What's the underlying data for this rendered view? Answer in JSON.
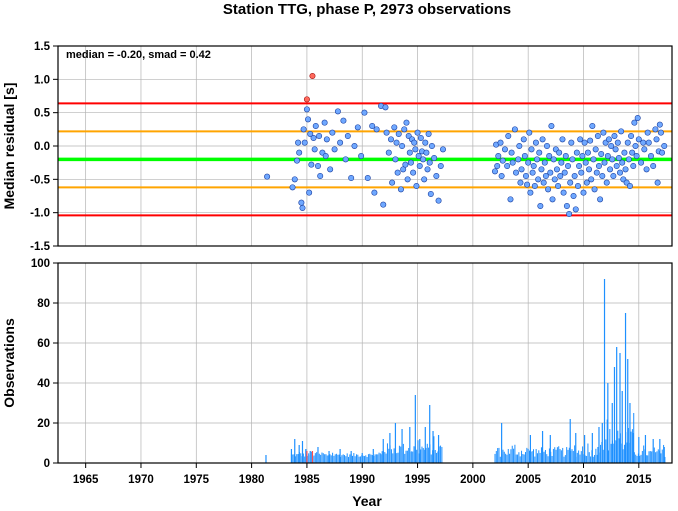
{
  "chart_data": [
    {
      "type": "scatter",
      "title": "Station TTG, phase P, 2973 observations",
      "ylabel": "Median residual [s]",
      "annotation": "median = -0.20, smad = 0.42",
      "xlim": [
        1962.5,
        2018.0
      ],
      "ylim": [
        -1.5,
        1.5
      ],
      "x_ticks": [
        1965,
        1970,
        1975,
        1980,
        1985,
        1990,
        1995,
        2000,
        2005,
        2010,
        2015
      ],
      "y_ticks": [
        "1.5",
        "1.0",
        "0.5",
        "0.0",
        "-0.5",
        "-1.0",
        "-1.5"
      ],
      "y_tick_values": [
        1.5,
        1.0,
        0.5,
        0.0,
        -0.5,
        -1.0,
        -1.5
      ],
      "grid": true,
      "reference_lines": [
        {
          "y": 0.64,
          "color": "#ff0000"
        },
        {
          "y": 0.22,
          "color": "#ffa500"
        },
        {
          "y": -0.2,
          "color": "#00ff00"
        },
        {
          "y": -0.62,
          "color": "#ffa500"
        },
        {
          "y": -1.04,
          "color": "#ff0000"
        }
      ],
      "outlier_points": [
        [
          1985.0,
          0.7
        ],
        [
          1985.5,
          1.05
        ]
      ],
      "points": [
        [
          1981.4,
          -0.46
        ],
        [
          1983.7,
          -0.62
        ],
        [
          1983.9,
          -0.5
        ],
        [
          1984.1,
          -0.22
        ],
        [
          1984.2,
          0.05
        ],
        [
          1984.3,
          -0.1
        ],
        [
          1984.5,
          -0.85
        ],
        [
          1984.6,
          -0.93
        ],
        [
          1984.7,
          0.25
        ],
        [
          1984.8,
          0.05
        ],
        [
          1985.0,
          0.55
        ],
        [
          1985.1,
          0.4
        ],
        [
          1985.2,
          -0.7
        ],
        [
          1985.3,
          0.18
        ],
        [
          1985.4,
          -0.28
        ],
        [
          1985.6,
          0.12
        ],
        [
          1985.7,
          -0.05
        ],
        [
          1985.8,
          0.3
        ],
        [
          1986.0,
          -0.3
        ],
        [
          1986.1,
          0.15
        ],
        [
          1986.2,
          -0.45
        ],
        [
          1986.4,
          -0.1
        ],
        [
          1986.6,
          0.35
        ],
        [
          1986.7,
          -0.15
        ],
        [
          1986.8,
          0.1
        ],
        [
          1987.1,
          -0.35
        ],
        [
          1987.3,
          0.2
        ],
        [
          1987.5,
          -0.05
        ],
        [
          1987.8,
          0.52
        ],
        [
          1988.0,
          0.05
        ],
        [
          1988.3,
          0.38
        ],
        [
          1988.5,
          -0.2
        ],
        [
          1988.7,
          0.15
        ],
        [
          1989.0,
          -0.48
        ],
        [
          1989.3,
          0.0
        ],
        [
          1989.6,
          0.28
        ],
        [
          1989.9,
          -0.15
        ],
        [
          1990.2,
          0.5
        ],
        [
          1990.5,
          -0.48
        ],
        [
          1990.9,
          0.3
        ],
        [
          1991.1,
          -0.7
        ],
        [
          1991.3,
          0.25
        ],
        [
          1991.7,
          0.6
        ],
        [
          1991.9,
          -0.88
        ],
        [
          1992.1,
          0.58
        ],
        [
          1992.2,
          0.2
        ],
        [
          1992.4,
          -0.1
        ],
        [
          1992.6,
          0.1
        ],
        [
          1992.7,
          -0.55
        ],
        [
          1992.9,
          0.28
        ],
        [
          1993.0,
          -0.2
        ],
        [
          1993.1,
          0.05
        ],
        [
          1993.2,
          -0.4
        ],
        [
          1993.3,
          0.18
        ],
        [
          1993.5,
          -0.65
        ],
        [
          1993.6,
          0.0
        ],
        [
          1993.7,
          -0.35
        ],
        [
          1993.8,
          0.25
        ],
        [
          1993.9,
          -0.28
        ],
        [
          1994.0,
          0.35
        ],
        [
          1994.1,
          -0.5
        ],
        [
          1994.2,
          0.15
        ],
        [
          1994.3,
          -0.1
        ],
        [
          1994.4,
          -0.25
        ],
        [
          1994.5,
          0.1
        ],
        [
          1994.6,
          -0.4
        ],
        [
          1994.7,
          0.05
        ],
        [
          1994.8,
          -0.05
        ],
        [
          1994.9,
          -0.6
        ],
        [
          1995.0,
          0.2
        ],
        [
          1995.1,
          -0.15
        ],
        [
          1995.2,
          -0.3
        ],
        [
          1995.3,
          0.12
        ],
        [
          1995.4,
          -0.08
        ],
        [
          1995.5,
          -0.2
        ],
        [
          1995.6,
          -0.5
        ],
        [
          1995.7,
          0.05
        ],
        [
          1995.8,
          -0.1
        ],
        [
          1995.9,
          -0.35
        ],
        [
          1996.0,
          0.18
        ],
        [
          1996.1,
          -0.25
        ],
        [
          1996.2,
          -0.72
        ],
        [
          1996.3,
          0.0
        ],
        [
          1996.5,
          -0.18
        ],
        [
          1996.7,
          -0.45
        ],
        [
          1996.9,
          -0.82
        ],
        [
          1997.1,
          -0.3
        ],
        [
          1997.3,
          -0.05
        ],
        [
          2002.0,
          -0.38
        ],
        [
          2002.1,
          0.02
        ],
        [
          2002.2,
          -0.3
        ],
        [
          2002.3,
          -0.15
        ],
        [
          2002.5,
          0.05
        ],
        [
          2002.6,
          -0.45
        ],
        [
          2002.7,
          -0.22
        ],
        [
          2002.9,
          -0.05
        ],
        [
          2003.1,
          -0.3
        ],
        [
          2003.2,
          0.15
        ],
        [
          2003.4,
          -0.8
        ],
        [
          2003.5,
          -0.1
        ],
        [
          2003.6,
          -0.25
        ],
        [
          2003.8,
          0.25
        ],
        [
          2003.9,
          -0.4
        ],
        [
          2004.1,
          -0.2
        ],
        [
          2004.2,
          0.0
        ],
        [
          2004.3,
          -0.55
        ],
        [
          2004.4,
          -0.35
        ],
        [
          2004.6,
          0.1
        ],
        [
          2004.7,
          -0.15
        ],
        [
          2004.8,
          -0.45
        ],
        [
          2004.9,
          -0.58
        ],
        [
          2005.0,
          -0.25
        ],
        [
          2005.1,
          0.2
        ],
        [
          2005.2,
          -0.7
        ],
        [
          2005.3,
          -0.05
        ],
        [
          2005.4,
          -0.4
        ],
        [
          2005.5,
          -0.3
        ],
        [
          2005.6,
          -0.6
        ],
        [
          2005.7,
          0.05
        ],
        [
          2005.8,
          -0.2
        ],
        [
          2005.9,
          -0.5
        ],
        [
          2006.0,
          -0.1
        ],
        [
          2006.1,
          -0.9
        ],
        [
          2006.2,
          -0.35
        ],
        [
          2006.3,
          0.1
        ],
        [
          2006.4,
          -0.55
        ],
        [
          2006.5,
          -0.25
        ],
        [
          2006.6,
          -0.45
        ],
        [
          2006.7,
          0.0
        ],
        [
          2006.8,
          -0.65
        ],
        [
          2006.9,
          -0.15
        ],
        [
          2007.0,
          -0.4
        ],
        [
          2007.1,
          0.3
        ],
        [
          2007.2,
          -0.8
        ],
        [
          2007.3,
          -0.2
        ],
        [
          2007.4,
          -0.5
        ],
        [
          2007.5,
          -0.05
        ],
        [
          2007.6,
          -0.35
        ],
        [
          2007.7,
          -0.6
        ],
        [
          2007.8,
          -0.1
        ],
        [
          2007.9,
          -0.45
        ],
        [
          2008.0,
          -0.25
        ],
        [
          2008.1,
          0.1
        ],
        [
          2008.2,
          -0.7
        ],
        [
          2008.3,
          -0.4
        ],
        [
          2008.4,
          -0.15
        ],
        [
          2008.5,
          -0.9
        ],
        [
          2008.6,
          -0.3
        ],
        [
          2008.7,
          -1.02
        ],
        [
          2008.8,
          -0.55
        ],
        [
          2008.9,
          0.05
        ],
        [
          2009.0,
          -0.2
        ],
        [
          2009.1,
          -0.75
        ],
        [
          2009.2,
          -0.45
        ],
        [
          2009.3,
          -0.95
        ],
        [
          2009.4,
          -0.1
        ],
        [
          2009.5,
          -0.6
        ],
        [
          2009.6,
          -0.3
        ],
        [
          2009.7,
          0.1
        ],
        [
          2009.8,
          -0.4
        ],
        [
          2009.9,
          -0.15
        ],
        [
          2010.0,
          -0.7
        ],
        [
          2010.1,
          0.05
        ],
        [
          2010.2,
          -0.25
        ],
        [
          2010.3,
          -0.55
        ],
        [
          2010.4,
          -0.1
        ],
        [
          2010.5,
          -0.35
        ],
        [
          2010.6,
          0.08
        ],
        [
          2010.7,
          -0.5
        ],
        [
          2010.8,
          0.3
        ],
        [
          2010.9,
          -0.2
        ],
        [
          2011.0,
          -0.65
        ],
        [
          2011.1,
          -0.05
        ],
        [
          2011.2,
          -0.4
        ],
        [
          2011.3,
          0.15
        ],
        [
          2011.4,
          -0.3
        ],
        [
          2011.5,
          -0.8
        ],
        [
          2011.6,
          -0.12
        ],
        [
          2011.7,
          -0.45
        ],
        [
          2011.8,
          0.2
        ],
        [
          2011.9,
          -0.25
        ],
        [
          2012.0,
          0.05
        ],
        [
          2012.1,
          -0.55
        ],
        [
          2012.2,
          -0.15
        ],
        [
          2012.3,
          0.1
        ],
        [
          2012.4,
          -0.35
        ],
        [
          2012.5,
          0.0
        ],
        [
          2012.6,
          -0.2
        ],
        [
          2012.7,
          -0.45
        ],
        [
          2012.8,
          0.15
        ],
        [
          2012.9,
          -0.05
        ],
        [
          2013.0,
          -0.3
        ],
        [
          2013.1,
          0.05
        ],
        [
          2013.2,
          -0.18
        ],
        [
          2013.3,
          -0.4
        ],
        [
          2013.4,
          0.22
        ],
        [
          2013.5,
          -0.25
        ],
        [
          2013.6,
          -0.5
        ],
        [
          2013.7,
          -0.1
        ],
        [
          2013.8,
          -0.35
        ],
        [
          2013.9,
          -0.55
        ],
        [
          2014.0,
          0.05
        ],
        [
          2014.1,
          -0.2
        ],
        [
          2014.2,
          -0.6
        ],
        [
          2014.3,
          0.15
        ],
        [
          2014.4,
          -0.1
        ],
        [
          2014.5,
          -0.3
        ],
        [
          2014.6,
          0.35
        ],
        [
          2014.7,
          0.0
        ],
        [
          2014.8,
          -0.15
        ],
        [
          2014.9,
          0.42
        ],
        [
          2015.0,
          0.1
        ],
        [
          2015.2,
          -0.25
        ],
        [
          2015.4,
          0.05
        ],
        [
          2015.5,
          -0.05
        ],
        [
          2015.7,
          -0.35
        ],
        [
          2015.8,
          0.2
        ],
        [
          2015.9,
          0.05
        ],
        [
          2016.1,
          -0.15
        ],
        [
          2016.3,
          -0.3
        ],
        [
          2016.5,
          0.25
        ],
        [
          2016.6,
          0.1
        ],
        [
          2016.7,
          -0.55
        ],
        [
          2016.8,
          -0.08
        ],
        [
          2016.9,
          0.32
        ],
        [
          2017.0,
          0.2
        ],
        [
          2017.1,
          -0.1
        ],
        [
          2017.3,
          0.0
        ]
      ]
    },
    {
      "type": "bar",
      "ylabel": "Observations",
      "xlabel": "Year",
      "xlim": [
        1962.5,
        2018.0
      ],
      "ylim": [
        0,
        100
      ],
      "x_ticks": [
        1965,
        1970,
        1975,
        1980,
        1985,
        1990,
        1995,
        2000,
        2005,
        2010,
        2015
      ],
      "y_ticks": [
        "100",
        "80",
        "60",
        "40",
        "20",
        "0"
      ],
      "y_tick_values": [
        100,
        80,
        60,
        40,
        20,
        0
      ],
      "grid": true,
      "bar_color": "#1e90ff",
      "bar_spikes": [
        [
          1981.3,
          4
        ],
        [
          1983.6,
          7
        ],
        [
          1983.9,
          12
        ],
        [
          1984.3,
          9
        ],
        [
          1984.6,
          11
        ],
        [
          1984.9,
          7
        ],
        [
          1985.3,
          6
        ],
        [
          1986.0,
          8
        ],
        [
          1987.0,
          6
        ],
        [
          1988.0,
          7
        ],
        [
          1989.0,
          6
        ],
        [
          1990.0,
          5
        ],
        [
          1991.0,
          7
        ],
        [
          1991.9,
          12
        ],
        [
          1992.5,
          15
        ],
        [
          1993.0,
          20
        ],
        [
          1993.6,
          17
        ],
        [
          1994.3,
          18
        ],
        [
          1994.8,
          34
        ],
        [
          1995.2,
          12
        ],
        [
          1995.7,
          18
        ],
        [
          1996.1,
          29
        ],
        [
          1996.4,
          16
        ],
        [
          1996.9,
          14
        ],
        [
          2002.6,
          20
        ],
        [
          2005.2,
          14
        ],
        [
          2006.3,
          16
        ],
        [
          2007.0,
          14
        ],
        [
          2008.8,
          22
        ],
        [
          2009.3,
          15
        ],
        [
          2010.1,
          14
        ],
        [
          2010.8,
          15
        ],
        [
          2011.4,
          18
        ],
        [
          2011.7,
          20
        ],
        [
          2011.9,
          92
        ],
        [
          2012.2,
          40
        ],
        [
          2012.6,
          30
        ],
        [
          2012.8,
          48
        ],
        [
          2013.0,
          58
        ],
        [
          2013.3,
          55
        ],
        [
          2013.5,
          36
        ],
        [
          2013.8,
          75
        ],
        [
          2014.0,
          52
        ],
        [
          2014.2,
          30
        ],
        [
          2014.5,
          15
        ],
        [
          2015.0,
          13
        ],
        [
          2015.6,
          14
        ],
        [
          2016.3,
          12
        ],
        [
          2016.9,
          12
        ],
        [
          2017.3,
          8
        ]
      ]
    }
  ]
}
